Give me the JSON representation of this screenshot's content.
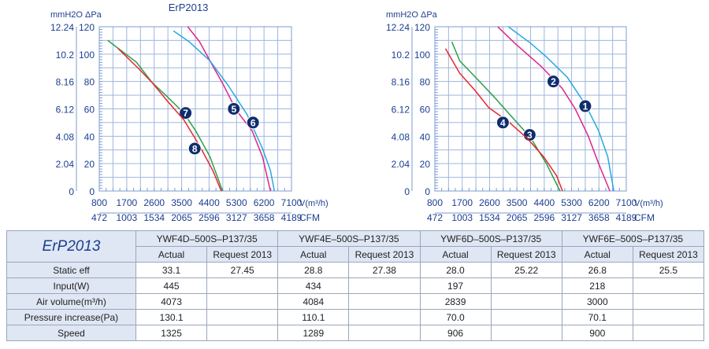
{
  "chart_data": [
    {
      "type": "line",
      "title": "ErP2013",
      "ylabel_left": "mmH2O",
      "ylabel_right": "ΔPa",
      "xlabel": "V(m³/h)",
      "xlabel2": "CFM",
      "xlim": [
        800,
        7100
      ],
      "ylim": [
        0,
        120
      ],
      "xticks": [
        "800",
        "1700",
        "2600",
        "3500",
        "4400",
        "5300",
        "6200",
        "7100"
      ],
      "cfm_ticks": [
        "472",
        "1003",
        "1534",
        "2065",
        "2596",
        "3127",
        "3658",
        "4189"
      ],
      "yticks_pa": [
        "0",
        "20",
        "40",
        "60",
        "80",
        "100",
        "120"
      ],
      "yticks_mm": [
        "0",
        "2.04",
        "4.08",
        "6.12",
        "8.16",
        "10.2",
        "12.24"
      ],
      "series": [
        {
          "name": "7",
          "color": "#2e9e48",
          "points": [
            [
              1075,
              110
            ],
            [
              2022,
              94
            ],
            [
              2540,
              79
            ],
            [
              2930,
              71
            ],
            [
              3570,
              57
            ],
            [
              3960,
              44
            ],
            [
              4430,
              25
            ],
            [
              4840,
              0
            ]
          ],
          "label_at": [
            3630,
            57
          ]
        },
        {
          "name": "8",
          "color": "#e8252a",
          "points": [
            [
              1420,
              104
            ],
            [
              2110,
              89
            ],
            [
              2540,
              79
            ],
            [
              3060,
              65
            ],
            [
              3570,
              52
            ],
            [
              4090,
              33
            ],
            [
              4520,
              15
            ],
            [
              4800,
              0
            ]
          ],
          "label_at": [
            3930,
            31
          ]
        },
        {
          "name": "5",
          "color": "#e0248a",
          "points": [
            [
              3700,
              120
            ],
            [
              4090,
              109
            ],
            [
              4430,
              95
            ],
            [
              4860,
              78
            ],
            [
              5290,
              59
            ],
            [
              5810,
              44
            ],
            [
              6150,
              25
            ],
            [
              6410,
              0
            ]
          ],
          "label_at": [
            5210,
            60
          ]
        },
        {
          "name": "6",
          "color": "#29a8e0",
          "points": [
            [
              3230,
              117
            ],
            [
              3750,
              109
            ],
            [
              4430,
              95
            ],
            [
              5030,
              77
            ],
            [
              5640,
              56
            ],
            [
              6150,
              31
            ],
            [
              6410,
              15
            ],
            [
              6540,
              0
            ]
          ],
          "label_at": [
            5840,
            50
          ]
        }
      ]
    },
    {
      "type": "line",
      "title": "",
      "ylabel_left": "mmH2O",
      "ylabel_right": "ΔPa",
      "xlabel": "V(m³/h)",
      "xlabel2": "CFM",
      "xlim": [
        800,
        7100
      ],
      "ylim": [
        0,
        120
      ],
      "xticks": [
        "800",
        "1700",
        "2600",
        "3500",
        "4400",
        "5300",
        "6200",
        "7100"
      ],
      "cfm_ticks": [
        "472",
        "1003",
        "1534",
        "2065",
        "2596",
        "3127",
        "3658",
        "4189"
      ],
      "yticks_pa": [
        "0",
        "20",
        "40",
        "60",
        "80",
        "100",
        "120"
      ],
      "yticks_mm": [
        "0",
        "2.04",
        "4.08",
        "6.12",
        "8.16",
        "10.2",
        "12.24"
      ],
      "series": [
        {
          "name": "1",
          "color": "#29a8e0",
          "points": [
            [
              3220,
              120
            ],
            [
              3950,
              108
            ],
            [
              4470,
              98
            ],
            [
              5160,
              83
            ],
            [
              5760,
              63
            ],
            [
              6190,
              44
            ],
            [
              6490,
              25
            ],
            [
              6690,
              0
            ]
          ],
          "label_at": [
            5750,
            62
          ]
        },
        {
          "name": "2",
          "color": "#e0248a",
          "points": [
            [
              2870,
              120
            ],
            [
              3430,
              108
            ],
            [
              4300,
              91
            ],
            [
              4990,
              75
            ],
            [
              5420,
              60
            ],
            [
              5850,
              40
            ],
            [
              6190,
              20
            ],
            [
              6560,
              0
            ]
          ],
          "label_at": [
            4700,
            80
          ]
        },
        {
          "name": "3",
          "color": "#2e9e48",
          "points": [
            [
              1360,
              109
            ],
            [
              1620,
              95
            ],
            [
              2140,
              83
            ],
            [
              2740,
              69
            ],
            [
              3260,
              56
            ],
            [
              3950,
              39
            ],
            [
              4470,
              20
            ],
            [
              4920,
              0
            ]
          ],
          "label_at": [
            3920,
            41
          ]
        },
        {
          "name": "4",
          "color": "#e8252a",
          "points": [
            [
              1150,
              104
            ],
            [
              1620,
              86
            ],
            [
              2140,
              73
            ],
            [
              2570,
              61
            ],
            [
              3260,
              50
            ],
            [
              3860,
              38
            ],
            [
              4380,
              25
            ],
            [
              4810,
              11
            ],
            [
              5000,
              0
            ]
          ],
          "label_at": [
            3040,
            50
          ]
        }
      ]
    }
  ],
  "table": {
    "title": "ErP2013",
    "models": [
      "YWF4D–500S–P137/35",
      "YWF4E–500S–P137/35",
      "YWF6D–500S–P137/35",
      "YWF6E–500S–P137/35"
    ],
    "subheaders": [
      "Actual",
      "Request 2013"
    ],
    "rows": [
      {
        "label": "Static eff",
        "cells": [
          "33.1",
          "27.45",
          "28.8",
          "27.38",
          "28.0",
          "25.22",
          "26.8",
          "25.5"
        ]
      },
      {
        "label": "Input(W)",
        "cells": [
          "445",
          "",
          "434",
          "",
          "197",
          "",
          "218",
          ""
        ]
      },
      {
        "label": "Air volume(m³/h)",
        "cells": [
          "4073",
          "",
          "4084",
          "",
          "2839",
          "",
          "3000",
          ""
        ]
      },
      {
        "label": "Pressure increase(Pa)",
        "cells": [
          "130.1",
          "",
          "110.1",
          "",
          "70.0",
          "",
          "70.1",
          ""
        ]
      },
      {
        "label": "Speed",
        "cells": [
          "1325",
          "",
          "1289",
          "",
          "906",
          "",
          "900",
          ""
        ]
      }
    ]
  }
}
